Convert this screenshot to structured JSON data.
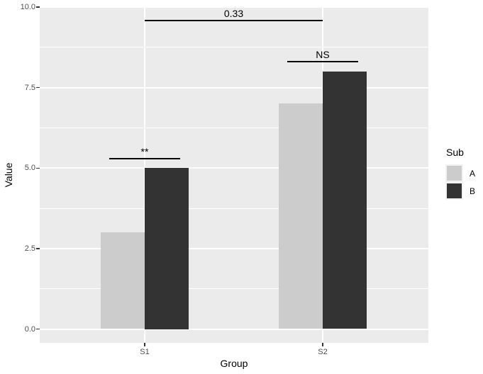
{
  "chart_data": {
    "type": "bar",
    "title": "",
    "xlabel": "Group",
    "ylabel": "Value",
    "categories": [
      "S1",
      "S2"
    ],
    "series": [
      {
        "name": "A",
        "values": [
          3,
          7
        ],
        "color": "#cccccc"
      },
      {
        "name": "B",
        "values": [
          5,
          8
        ],
        "color": "#333333"
      }
    ],
    "ylim": [
      0,
      10
    ],
    "yticks": [
      {
        "value": 0,
        "label": "0.0"
      },
      {
        "value": 2.5,
        "label": "2.5"
      },
      {
        "value": 5,
        "label": "5.0"
      },
      {
        "value": 7.5,
        "label": "7.5"
      },
      {
        "value": 10,
        "label": "10.0"
      }
    ],
    "y_minor": [
      1.25,
      3.75,
      6.25,
      8.75
    ],
    "grid": "on",
    "legend": {
      "title": "Sub",
      "position": "right",
      "entries": [
        {
          "label": "A",
          "color": "#cccccc"
        },
        {
          "label": "B",
          "color": "#333333"
        }
      ]
    },
    "annotations": [
      {
        "label": "**",
        "x1": 0.8,
        "x2": 1.2,
        "y": 5.3
      },
      {
        "label": "NS",
        "x1": 1.8,
        "x2": 2.2,
        "y": 8.3
      },
      {
        "label": "0.33",
        "x1": 1.0,
        "x2": 2.0,
        "y": 9.58
      }
    ],
    "colors": {
      "panel_bg": "#ebebeb",
      "gridline": "#ffffff",
      "axis_text": "#4d4d4d",
      "axis_title": "#000000",
      "tick_mark": "#333333",
      "annotation": "#000000",
      "legend_key_bg": "#f2f2f2"
    }
  }
}
